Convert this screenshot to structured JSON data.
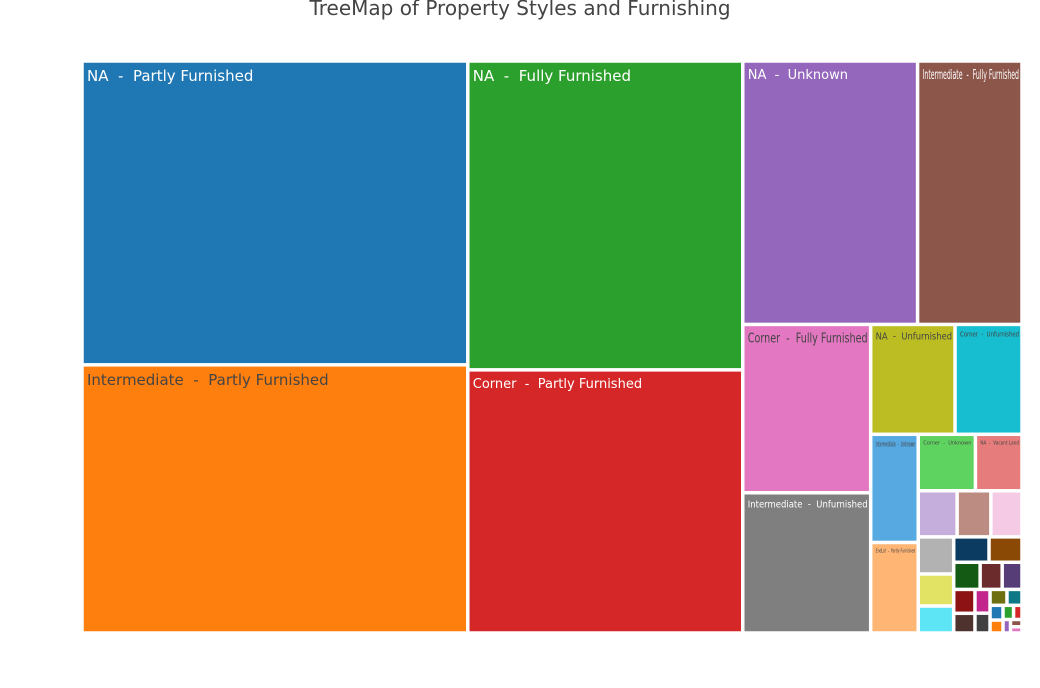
{
  "chart_data": {
    "type": "treemap",
    "title": "TreeMap of Property Styles and Furnishing",
    "separator": "  -  ",
    "items": [
      {
        "label": "NA  -  Partly Furnished",
        "value": 196,
        "color": "#1f77b4",
        "text_color": "#ffffff"
      },
      {
        "label": "Intermediate  -  Partly Furnished",
        "value": 173,
        "color": "#ff7f0e",
        "text_color": "#444444"
      },
      {
        "label": "NA  -  Fully Furnished",
        "value": 142,
        "color": "#2ca02c",
        "text_color": "#ffffff"
      },
      {
        "label": "Corner  -  Partly Furnished",
        "value": 121,
        "color": "#d62728",
        "text_color": "#ffffff"
      },
      {
        "label": "NA  -  Unknown",
        "value": 77,
        "color": "#9467bd",
        "text_color": "#ffffff"
      },
      {
        "label": "Intermediate  -  Fully Furnished",
        "value": 46,
        "color": "#8c564b",
        "text_color": "#ffffff"
      },
      {
        "label": "Corner  -  Fully Furnished",
        "value": 36,
        "color": "#e377c2",
        "text_color": "#444444"
      },
      {
        "label": "Intermediate  -  Unfurnished",
        "value": 30,
        "color": "#7f7f7f",
        "text_color": "#ffffff"
      },
      {
        "label": "NA  -  Unfurnished",
        "value": 15.5,
        "color": "#bcbd22",
        "text_color": "#444444"
      },
      {
        "label": "Corner  -  Unfurnished",
        "value": 12.3,
        "color": "#17becf",
        "text_color": "#444444"
      },
      {
        "label": "Intermediate  -  Unknown",
        "value": 8.6,
        "color": "#57a9e2",
        "text_color": "#444444"
      },
      {
        "label": "EndLot  -  Partly Furnished",
        "value": 7.2,
        "color": "#ffb574",
        "text_color": "#444444"
      },
      {
        "label": "Corner  -  Unknown",
        "value": 5.4,
        "color": "#5fd35f",
        "text_color": "#444444"
      },
      {
        "label": "NA  -  Vacant Land",
        "value": 4.4,
        "color": "#e77c7c",
        "text_color": "#444444"
      }
    ],
    "small_tiles": [
      {
        "color": "#c6aedc",
        "value": 3.0
      },
      {
        "color": "#bc8b81",
        "value": 2.6
      },
      {
        "color": "#f4cae5",
        "value": 2.4
      },
      {
        "color": "#b2b2b2",
        "value": 2.2
      },
      {
        "color": "#e2e365",
        "value": 1.9
      },
      {
        "color": "#5ee5f5",
        "value": 1.6
      },
      {
        "color": "#0b3b60",
        "value": 1.5
      },
      {
        "color": "#8a4a06",
        "value": 1.4
      },
      {
        "color": "#145a14",
        "value": 1.2
      },
      {
        "color": "#6b2b2c",
        "value": 1.0
      },
      {
        "color": "#573d77",
        "value": 0.9
      },
      {
        "color": "#8d1213",
        "value": 0.85
      },
      {
        "color": "#4e322d",
        "value": 0.7
      },
      {
        "color": "#c2258c",
        "value": 0.6
      },
      {
        "color": "#404040",
        "value": 0.5
      },
      {
        "color": "#6e6f10",
        "value": 0.45
      },
      {
        "color": "#0e7886",
        "value": 0.4
      },
      {
        "color": "#1f77b4",
        "value": 0.32
      },
      {
        "color": "#ff7f0e",
        "value": 0.28
      },
      {
        "color": "#2ca02c",
        "value": 0.25
      },
      {
        "color": "#d62728",
        "value": 0.2
      },
      {
        "color": "#9467bd",
        "value": 0.17
      },
      {
        "color": "#8c564b",
        "value": 0.14
      },
      {
        "color": "#e377c2",
        "value": 0.12
      }
    ]
  }
}
